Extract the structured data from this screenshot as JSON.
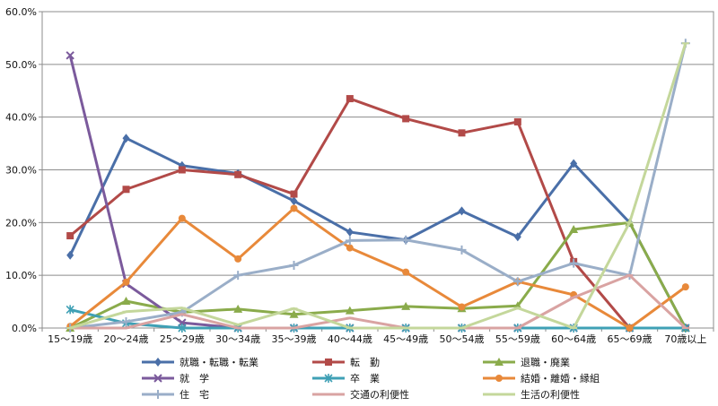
{
  "chart_data": {
    "type": "line",
    "categories": [
      "15〜19歳",
      "20〜24歳",
      "25〜29歳",
      "30〜34歳",
      "35〜39歳",
      "40〜44歳",
      "45〜49歳",
      "50〜54歳",
      "55〜59歳",
      "60〜64歳",
      "65〜69歳",
      "70歳以上"
    ],
    "y_ticks": [
      "0.0%",
      "10.0%",
      "20.0%",
      "30.0%",
      "40.0%",
      "50.0%",
      "60.0%"
    ],
    "ylim": [
      0,
      60
    ],
    "grid": true,
    "legend_position": "bottom",
    "series": [
      {
        "name": "就職・転職・転業",
        "color": "#4a6fa8",
        "marker": "diamond",
        "values": [
          13.8,
          36.0,
          30.8,
          29.3,
          24.1,
          18.2,
          16.7,
          22.2,
          17.3,
          31.2,
          20.0,
          0.0
        ]
      },
      {
        "name": "転　勤",
        "color": "#b24a48",
        "marker": "square",
        "values": [
          17.5,
          26.3,
          30.0,
          29.1,
          25.4,
          43.5,
          39.7,
          37.0,
          39.1,
          12.6,
          0.0,
          0.0
        ]
      },
      {
        "name": "退職・廃業",
        "color": "#8aab4b",
        "marker": "triangle",
        "values": [
          0.0,
          5.1,
          3.0,
          3.6,
          2.6,
          3.3,
          4.1,
          3.7,
          4.2,
          18.7,
          20.0,
          0.0
        ]
      },
      {
        "name": "就　学",
        "color": "#7b5a9c",
        "marker": "x",
        "values": [
          51.7,
          8.4,
          1.0,
          0.0,
          0.0,
          0.0,
          0.0,
          0.0,
          0.0,
          0.0,
          0.0,
          0.0
        ]
      },
      {
        "name": "卒　業",
        "color": "#3fa0b5",
        "marker": "asterisk",
        "values": [
          3.5,
          0.9,
          0.0,
          0.0,
          0.0,
          0.0,
          0.0,
          0.0,
          0.0,
          0.0,
          0.0,
          0.0
        ]
      },
      {
        "name": "結婚・離婚・縁組",
        "color": "#e8893a",
        "marker": "circle",
        "values": [
          0.3,
          8.7,
          20.8,
          13.1,
          22.7,
          15.2,
          10.6,
          4.0,
          8.8,
          6.3,
          0.0,
          7.8
        ]
      },
      {
        "name": "住　宅",
        "color": "#9aaec8",
        "marker": "plus",
        "values": [
          0.0,
          1.2,
          3.0,
          10.0,
          11.9,
          16.6,
          16.7,
          14.8,
          8.8,
          12.3,
          10.0,
          54.0
        ]
      },
      {
        "name": "交通の利便性",
        "color": "#d9a3a2",
        "marker": "dash",
        "values": [
          0.0,
          0.0,
          2.6,
          0.0,
          0.0,
          1.9,
          0.0,
          0.0,
          0.0,
          5.8,
          10.0,
          0.0
        ]
      },
      {
        "name": "生活の利便性",
        "color": "#c4d79b",
        "marker": "dash",
        "values": [
          0.0,
          3.1,
          3.8,
          0.6,
          3.7,
          0.0,
          0.0,
          0.0,
          3.8,
          0.0,
          20.0,
          54.0
        ]
      }
    ]
  }
}
